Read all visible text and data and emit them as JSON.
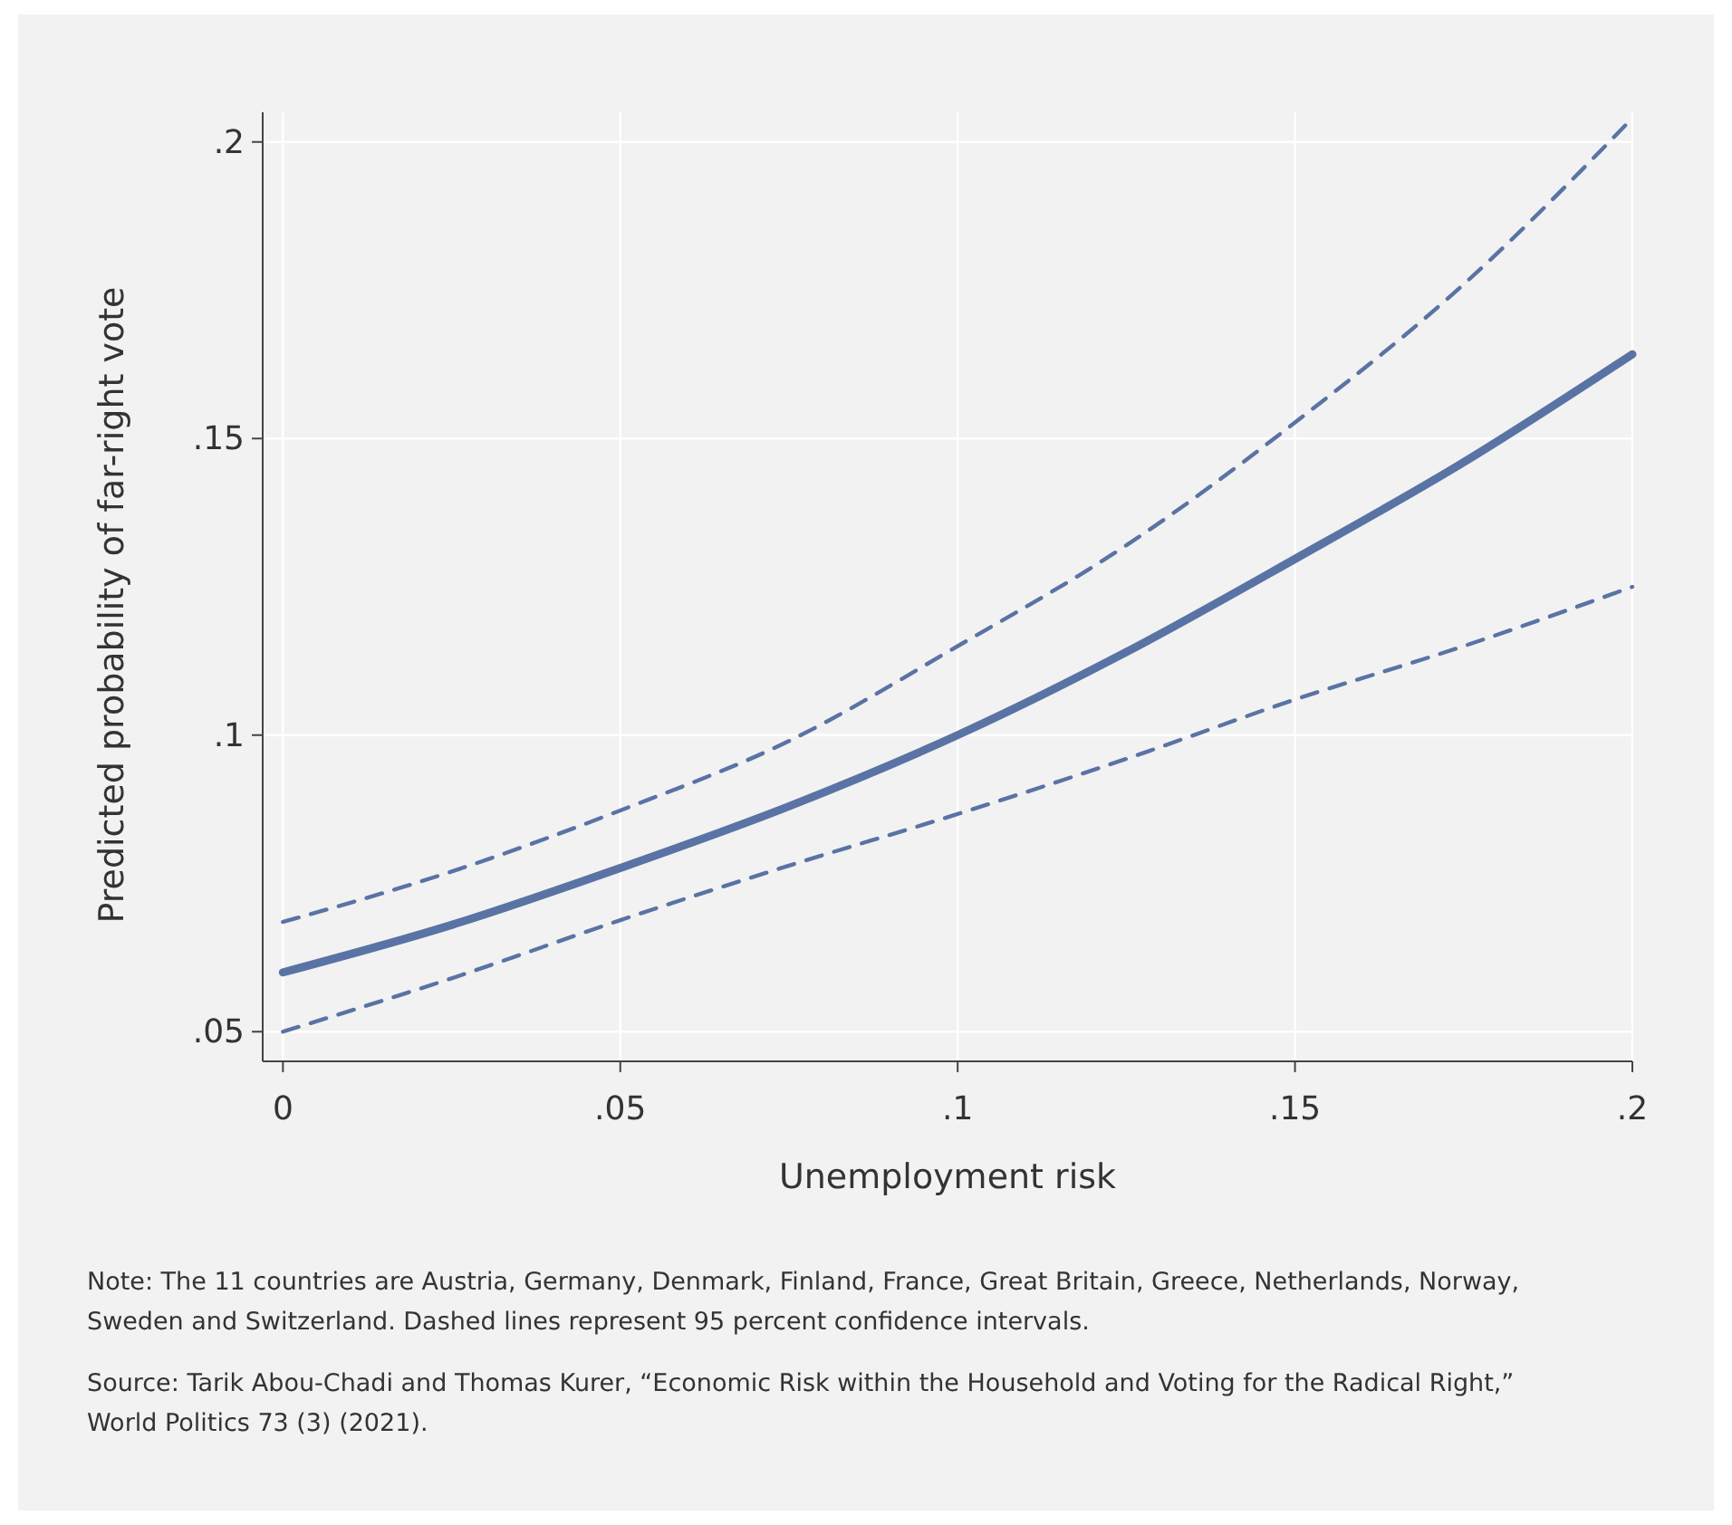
{
  "chart_data": {
    "type": "line",
    "xlabel": "Unemployment risk",
    "ylabel": "Predicted probability of far-right vote",
    "x": [
      0,
      0.025,
      0.05,
      0.075,
      0.1,
      0.125,
      0.15,
      0.175,
      0.2
    ],
    "series": [
      {
        "color": "#5a73a5",
        "line_style": "solid",
        "values": [
          0.06,
          0.068,
          0.0776,
          0.088,
          0.1,
          0.114,
          0.1297,
          0.146,
          0.1642
        ]
      },
      {
        "color": "#5a73a5",
        "line_style": "dashed",
        "values": [
          0.0685,
          0.077,
          0.0873,
          0.099,
          0.115,
          0.132,
          0.1527,
          0.176,
          0.204
        ]
      },
      {
        "color": "#5a73a5",
        "line_style": "dashed",
        "values": [
          0.05,
          0.059,
          0.0688,
          0.078,
          0.0867,
          0.096,
          0.106,
          0.115,
          0.125
        ]
      }
    ],
    "xlim": [
      -0.003,
      0.2
    ],
    "ylim": [
      0.045,
      0.205
    ],
    "xticks": [
      0,
      {
        "value": 0.05,
        "label": ".05"
      },
      {
        "value": 0.1,
        "label": ".1"
      },
      {
        "value": 0.15,
        "label": ".15"
      },
      {
        "value": 0.2,
        "label": ".2"
      }
    ],
    "yticks": [
      {
        "value": 0.05,
        "label": ".05"
      },
      {
        "value": 0.1,
        "label": ".1"
      },
      {
        "value": 0.15,
        "label": ".15"
      },
      {
        "value": 0.2,
        "label": ".2"
      }
    ],
    "grid": true,
    "marker": "none",
    "annotations": [
      "Note: The 11 countries are Austria, Germany, Denmark, Finland, France, Great Britain, Greece, Netherlands, Norway, Sweden and Switzerland. Dashed lines represent 95 percent confidence intervals.",
      "Source: Tarik Abou-Chadi and Thomas Kurer, “Economic Risk within the Household and Voting for the Radical Right,” World Politics 73 (3) (2021)."
    ]
  }
}
